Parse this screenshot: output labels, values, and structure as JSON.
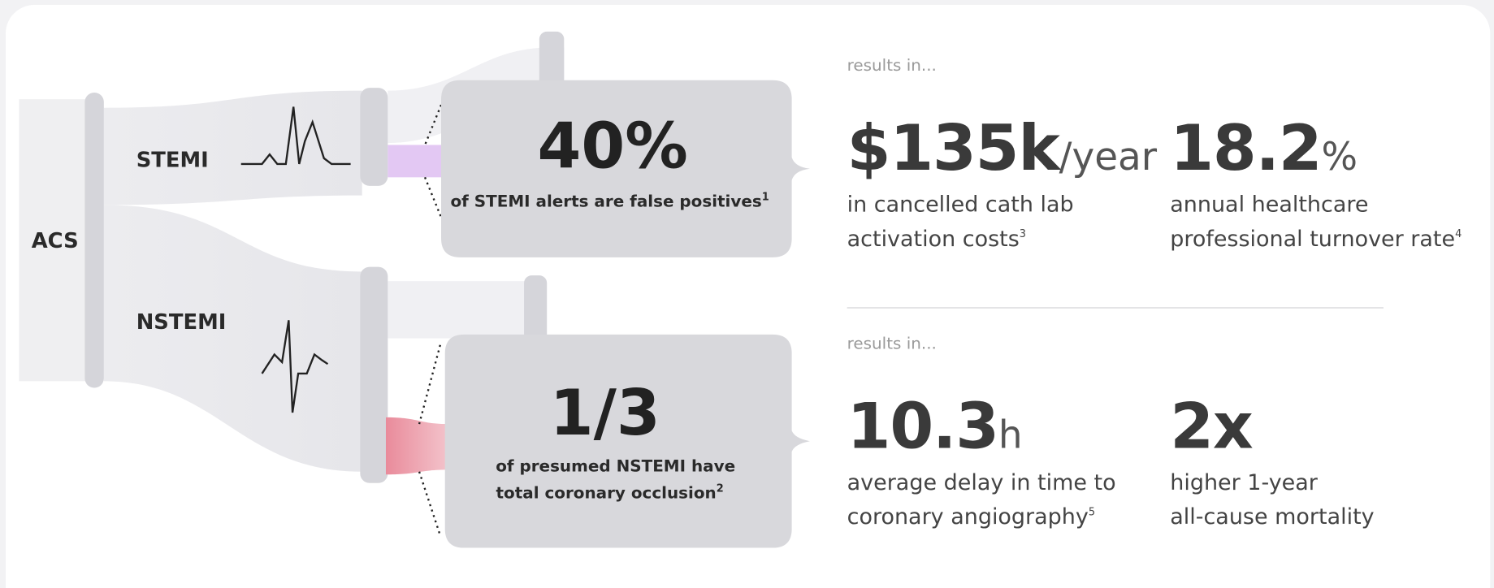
{
  "diagram": {
    "root": "ACS",
    "branches": [
      "STEMI",
      "NSTEMI"
    ],
    "callouts": [
      {
        "headline": "40%",
        "lines": [
          "of STEMI alerts are false positives"
        ],
        "footnote": "1"
      },
      {
        "headline": "1/3",
        "lines": [
          "of presumed NSTEMI have",
          "total coronary occlusion"
        ],
        "footnote": "2"
      }
    ]
  },
  "results": [
    {
      "intro": "results in...",
      "stats": [
        {
          "value": "$135k",
          "unit": "/year",
          "lines": [
            "in cancelled cath lab",
            "activation costs"
          ],
          "footnote": "3"
        },
        {
          "value": "18.2",
          "unit": "%",
          "lines": [
            "annual healthcare",
            "professional turnover rate"
          ],
          "footnote": "4"
        }
      ]
    },
    {
      "intro": "results in...",
      "stats": [
        {
          "value": "10.3",
          "unit": "h",
          "lines": [
            "average delay in time to",
            "coronary angiography"
          ],
          "footnote": "5"
        },
        {
          "value": "2x",
          "lines": [
            "higher 1-year",
            "all-cause mortality"
          ]
        }
      ]
    }
  ]
}
